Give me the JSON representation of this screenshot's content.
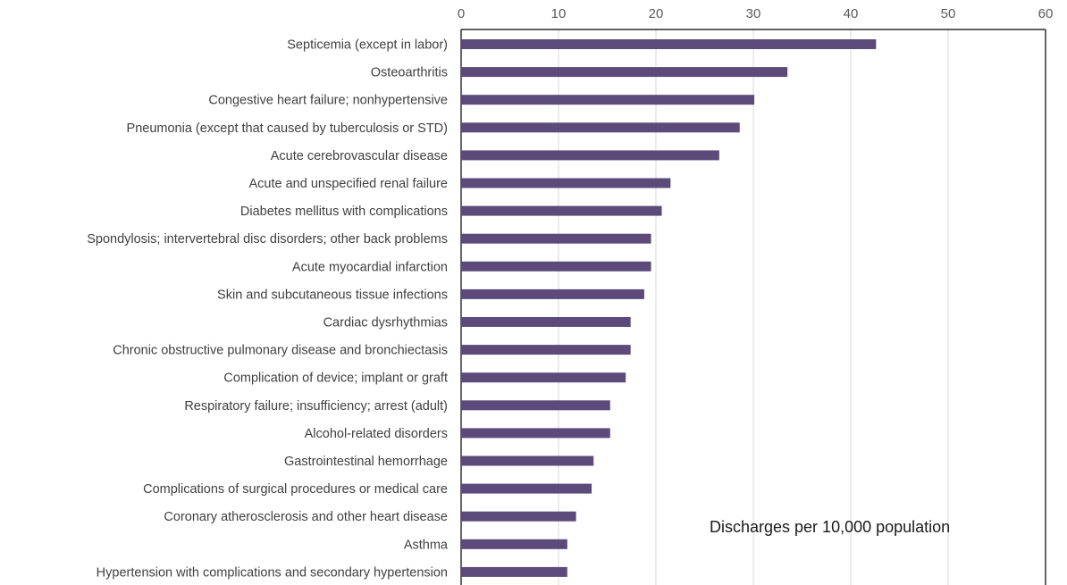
{
  "chart_data": {
    "type": "bar",
    "orientation": "horizontal",
    "categories": [
      "Septicemia (except in labor)",
      "Osteoarthritis",
      "Congestive heart failure; nonhypertensive",
      "Pneumonia (except that caused by tuberculosis or STD)",
      "Acute cerebrovascular disease",
      "Acute and unspecified renal failure",
      "Diabetes mellitus with complications",
      "Spondylosis; intervertebral disc disorders; other back problems",
      "Acute myocardial infarction",
      "Skin and subcutaneous tissue infections",
      "Cardiac dysrhythmias",
      "Chronic obstructive pulmonary disease and bronchiectasis",
      "Complication of device; implant or graft",
      "Respiratory failure; insufficiency; arrest (adult)",
      "Alcohol-related disorders",
      "Gastrointestinal hemorrhage",
      "Complications of surgical procedures or medical care",
      "Coronary atherosclerosis and other heart disease",
      "Asthma",
      "Hypertension with complications and secondary hypertension"
    ],
    "values": [
      42.6,
      33.5,
      30.1,
      28.6,
      26.5,
      21.5,
      20.6,
      19.5,
      19.5,
      18.8,
      17.4,
      17.4,
      16.9,
      15.3,
      15.3,
      13.6,
      13.4,
      11.8,
      10.9,
      10.9
    ],
    "xlim": [
      0,
      60
    ],
    "xticks": [
      "0",
      "10",
      "20",
      "30",
      "40",
      "50",
      "60"
    ],
    "x_axis_position": "top",
    "grid": "vertical",
    "bar_color": "#5b4a7a",
    "annotation": "Discharges per 10,000 population"
  }
}
